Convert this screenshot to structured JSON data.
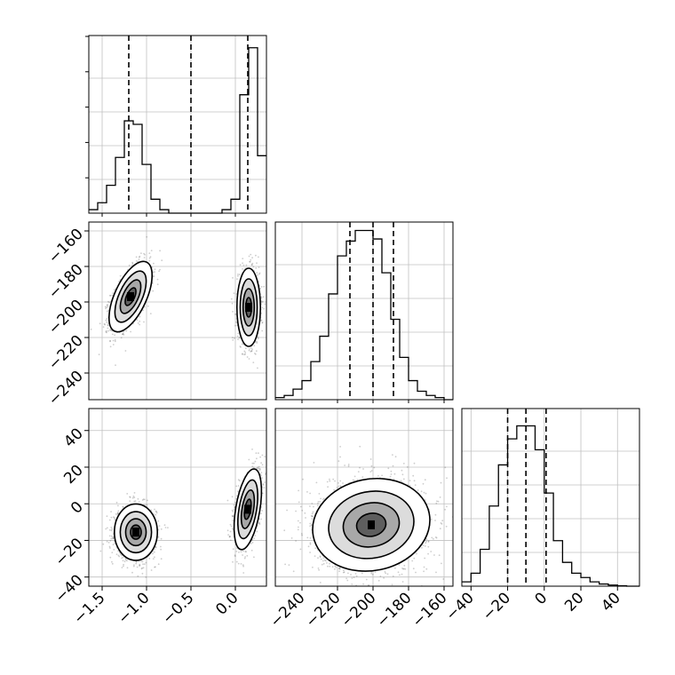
{
  "chart_data": {
    "type": "corner",
    "grid": true,
    "colors": {
      "line": "#000000",
      "grid": "#c0c0c0",
      "scatter": "#4d4d4d",
      "background": "#ffffff"
    },
    "parameters": [
      {
        "range": [
          -1.65,
          0.35
        ],
        "ticks": [
          "-1.5",
          "-1.0",
          "-0.5",
          "0.0"
        ],
        "tick_values": [
          -1.5,
          -1.0,
          -0.5,
          0.0
        ]
      },
      {
        "range": [
          -255,
          -155
        ],
        "ticks": [
          "-160",
          "-180",
          "-200",
          "-220",
          "-240"
        ],
        "tick_values": [
          -160,
          -180,
          -200,
          -220,
          -240
        ],
        "xticks": [
          "-240",
          "-220",
          "-200",
          "-180",
          "-160"
        ],
        "xtick_values": [
          -240,
          -220,
          -200,
          -180,
          -160
        ]
      },
      {
        "range": [
          -45,
          52
        ],
        "ticks": [
          "40",
          "20",
          "0",
          "-20",
          "-40"
        ],
        "tick_values": [
          40,
          20,
          0,
          -20,
          -40
        ],
        "xticks": [
          "-40",
          "-20",
          "0",
          "20",
          "40"
        ],
        "xtick_values": [
          -40,
          -20,
          0,
          20,
          40
        ]
      }
    ],
    "histograms": [
      {
        "param": 0,
        "bin_edges": [
          -1.65,
          -1.55,
          -1.45,
          -1.35,
          -1.25,
          -1.15,
          -1.05,
          -0.95,
          -0.85,
          -0.75,
          -0.65,
          -0.55,
          -0.45,
          -0.35,
          -0.25,
          -0.15,
          -0.05,
          0.05,
          0.15,
          0.25,
          0.35
        ],
        "counts": [
          0.2,
          0.6,
          1.6,
          3.2,
          5.3,
          5.1,
          2.8,
          0.8,
          0.2,
          0.0,
          0.0,
          0.0,
          0.0,
          0.0,
          0.0,
          0.2,
          0.8,
          6.8,
          9.5,
          3.3
        ],
        "ymax": 10.2,
        "quantiles": [
          -1.2,
          -0.5,
          0.14
        ]
      },
      {
        "param": 1,
        "bin_edges": [
          -255,
          -250,
          -245,
          -240,
          -235,
          -230,
          -225,
          -220,
          -215,
          -210,
          -205,
          -200,
          -195,
          -190,
          -185,
          -180,
          -175,
          -170,
          -165,
          -160,
          -155
        ],
        "counts": [
          0.1,
          0.2,
          0.5,
          0.9,
          1.8,
          3.0,
          5.0,
          6.8,
          7.5,
          8.0,
          8.0,
          7.6,
          6.0,
          3.8,
          2.0,
          0.9,
          0.4,
          0.2,
          0.1,
          0.0
        ],
        "ymax": 8.4,
        "quantiles": [
          -213,
          -200,
          -188.5
        ]
      },
      {
        "param": 2,
        "bin_edges": [
          -45,
          -40,
          -35,
          -30,
          -25,
          -20,
          -15,
          -10,
          -5,
          0,
          5,
          10,
          15,
          20,
          25,
          30,
          35,
          40,
          45,
          52
        ],
        "counts": [
          0.2,
          0.6,
          1.7,
          3.7,
          5.6,
          6.8,
          7.4,
          7.4,
          6.3,
          4.3,
          2.1,
          1.1,
          0.6,
          0.4,
          0.2,
          0.1,
          0.05,
          0.02,
          0.0
        ],
        "ymax": 8.2,
        "quantiles": [
          -20,
          -10,
          1
        ]
      }
    ],
    "pairs": [
      {
        "x": 0,
        "y": 1,
        "clusters": [
          {
            "cx": -1.18,
            "cy": -197,
            "sx": 0.11,
            "sy": 9.0,
            "rho": 0.6,
            "n": 1500
          },
          {
            "cx": 0.15,
            "cy": -203,
            "sx": 0.06,
            "sy": 10.0,
            "rho": 0.0,
            "n": 1500
          }
        ]
      },
      {
        "x": 0,
        "y": 2,
        "clusters": [
          {
            "cx": -1.12,
            "cy": -15.5,
            "sx": 0.11,
            "sy": 7.0,
            "rho": 0.0,
            "n": 1500
          },
          {
            "cx": 0.14,
            "cy": -3.0,
            "sx": 0.07,
            "sy": 10.0,
            "rho": 0.45,
            "n": 1500
          }
        ]
      },
      {
        "x": 1,
        "y": 2,
        "clusters": [
          {
            "cx": -201,
            "cy": -11.5,
            "sx": 15.0,
            "sy": 11.5,
            "rho": 0.1,
            "n": 3000
          }
        ]
      }
    ]
  }
}
